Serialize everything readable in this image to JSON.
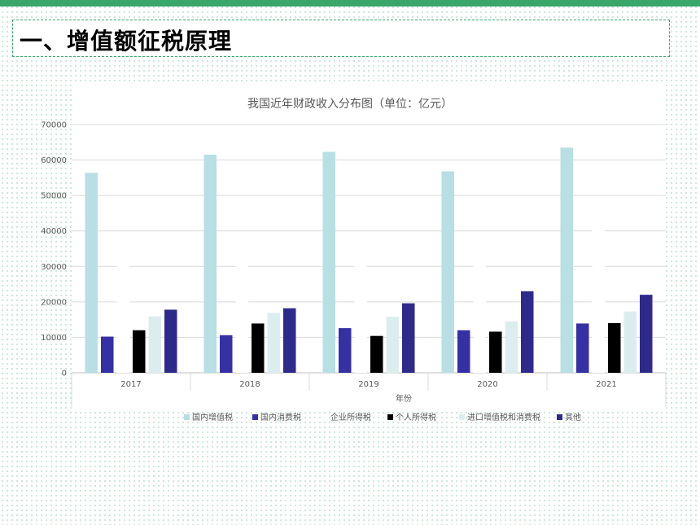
{
  "page": {
    "title": "一、增值额征税原理"
  },
  "colors": {
    "accent": "#3aa76a"
  },
  "chart_data": {
    "type": "bar",
    "title": "我国近年财政收入分布图（单位：亿元）",
    "xlabel": "年份",
    "ylabel": "",
    "ylim": [
      0,
      70000
    ],
    "yticks": [
      "0",
      "10000",
      "20000",
      "30000",
      "40000",
      "50000",
      "60000",
      "70000"
    ],
    "grid": true,
    "legend_position": "bottom",
    "categories": [
      "2017",
      "2018",
      "2019",
      "2020",
      "2021"
    ],
    "series": [
      {
        "name": "国内增值税",
        "color": "#b8dfe3",
        "values": [
          56400,
          61500,
          62300,
          56800,
          63500
        ]
      },
      {
        "name": "国内消费税",
        "color": "#3530a3",
        "values": [
          10200,
          10600,
          12600,
          12000,
          13900
        ]
      },
      {
        "name": "企业所得税",
        "color": "#ffffff",
        "values": [
          32100,
          35300,
          37300,
          36400,
          42000
        ]
      },
      {
        "name": "个人所得税",
        "color": "#000000",
        "values": [
          12000,
          13900,
          10400,
          11600,
          14000
        ]
      },
      {
        "name": "进口增值税和消费税",
        "color": "#dcedf0",
        "values": [
          15900,
          16900,
          15800,
          14500,
          17300
        ]
      },
      {
        "name": "其他",
        "color": "#2e2a8c",
        "values": [
          17800,
          18200,
          19600,
          23000,
          22000
        ]
      }
    ]
  }
}
